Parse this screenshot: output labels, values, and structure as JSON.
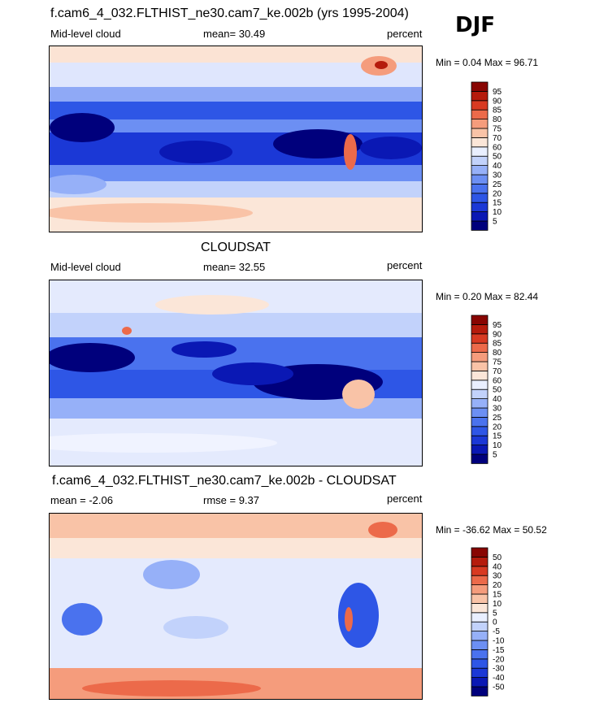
{
  "season": "DJF",
  "panels": [
    {
      "title": "f.cam6_4_032.FLTHIST_ne30.cam7_ke.002b (yrs 1995-2004)",
      "left_label": "Mid-level cloud",
      "center_label": "mean=  30.49",
      "right_label": "percent",
      "minmax": "Min =   0.04 Max =  96.71"
    },
    {
      "title": "CLOUDSAT",
      "left_label": "Mid-level cloud",
      "center_label": "mean=  32.55",
      "right_label": "percent",
      "minmax": "Min =   0.20 Max =  82.44"
    },
    {
      "title": "f.cam6_4_032.FLTHIST_ne30.cam7_ke.002b - CLOUDSAT",
      "left_label": "mean =  -2.06",
      "center_label": "rmse =    9.37",
      "right_label": "percent",
      "minmax": "Min = -36.62 Max =  50.52"
    }
  ],
  "chart_data": [
    {
      "type": "heatmap",
      "title": "f.cam6_4_032.FLTHIST_ne30.cam7_ke.002b (yrs 1995-2004)",
      "variable": "Mid-level cloud",
      "units": "percent",
      "mean": 30.49,
      "min": 0.04,
      "max": 96.71,
      "colorbar_levels": [
        5,
        10,
        15,
        20,
        25,
        30,
        40,
        50,
        60,
        70,
        75,
        80,
        85,
        90,
        95
      ],
      "colors": [
        "#00007c",
        "#0a18b4",
        "#1b38d6",
        "#2e56e6",
        "#4a72ee",
        "#6c8ff3",
        "#96b0f8",
        "#c2d2fb",
        "#e9efff",
        "#fbe6d8",
        "#f9c3a7",
        "#f59c7c",
        "#ec6a4a",
        "#d83a22",
        "#b51b0c",
        "#880502"
      ]
    },
    {
      "type": "heatmap",
      "title": "CLOUDSAT",
      "variable": "Mid-level cloud",
      "units": "percent",
      "mean": 32.55,
      "min": 0.2,
      "max": 82.44,
      "colorbar_levels": [
        5,
        10,
        15,
        20,
        25,
        30,
        40,
        50,
        60,
        70,
        75,
        80,
        85,
        90,
        95
      ],
      "colors": [
        "#00007c",
        "#0a18b4",
        "#1b38d6",
        "#2e56e6",
        "#4a72ee",
        "#6c8ff3",
        "#96b0f8",
        "#c2d2fb",
        "#e9efff",
        "#fbe6d8",
        "#f9c3a7",
        "#f59c7c",
        "#ec6a4a",
        "#d83a22",
        "#b51b0c",
        "#880502"
      ]
    },
    {
      "type": "heatmap",
      "title": "f.cam6_4_032.FLTHIST_ne30.cam7_ke.002b - CLOUDSAT",
      "units": "percent",
      "mean": -2.06,
      "rmse": 9.37,
      "min": -36.62,
      "max": 50.52,
      "colorbar_levels": [
        -50,
        -40,
        -30,
        -20,
        -15,
        -10,
        -5,
        0,
        5,
        10,
        15,
        20,
        30,
        40,
        50
      ],
      "colors": [
        "#00007c",
        "#0a18b4",
        "#1b38d6",
        "#2e56e6",
        "#4a72ee",
        "#6c8ff3",
        "#96b0f8",
        "#c2d2fb",
        "#e9efff",
        "#fbe6d8",
        "#f9c3a7",
        "#f59c7c",
        "#ec6a4a",
        "#d83a22",
        "#b51b0c",
        "#880502"
      ]
    }
  ]
}
